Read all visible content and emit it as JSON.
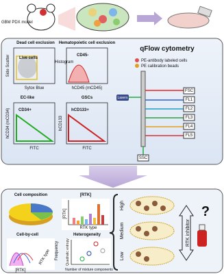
{
  "top": {
    "model": "GBM PDX model"
  },
  "gating": {
    "dead": {
      "title": "Dead cell exclusion",
      "gate": "Live cells",
      "y_label": "Side Scatter",
      "x_label": "Sytox Blue"
    },
    "hema": {
      "title": "Hematopoietic cell exclusion",
      "inner": "Histogram",
      "gate": "CD45-",
      "x_label": "hCD45 (mCD45)"
    },
    "ec": {
      "title": "EC-like",
      "gate": "CD34+",
      "y_label": "hCD34 (mCD34)",
      "x_label": "FITC"
    },
    "gsc": {
      "title": "GSCs",
      "gate": "hCD133+",
      "y_label": "hCD133",
      "x_label": "FITC"
    }
  },
  "qflow": {
    "title": "qFlow cytometry",
    "legend": [
      "PE-antibody labeled cells",
      "PE calibration beads"
    ],
    "lasers": "Lasers",
    "fsc": "FSC",
    "channels": [
      "FL1",
      "FL2",
      "FL3",
      "FL4",
      "FL5"
    ],
    "ssc": "SSC"
  },
  "analysis": {
    "composition": "Cell composition",
    "rtk": {
      "title": "[RTK]",
      "y_label": "[RTK]",
      "x_label": "RTK type"
    },
    "cellbycell": {
      "title": "Cell-by-cell",
      "y_label": "Frequency",
      "z_label": "RTK type",
      "x_label": "[RTK]"
    },
    "heterogeneity": {
      "title": "Heterogeneity",
      "y_label": "Quadratic entropy",
      "x_label": "Number of mixture components"
    }
  },
  "response": {
    "levels": [
      "High",
      "Medium",
      "Low"
    ],
    "inhibitor": "RTK inhibitor",
    "question": "?"
  }
}
